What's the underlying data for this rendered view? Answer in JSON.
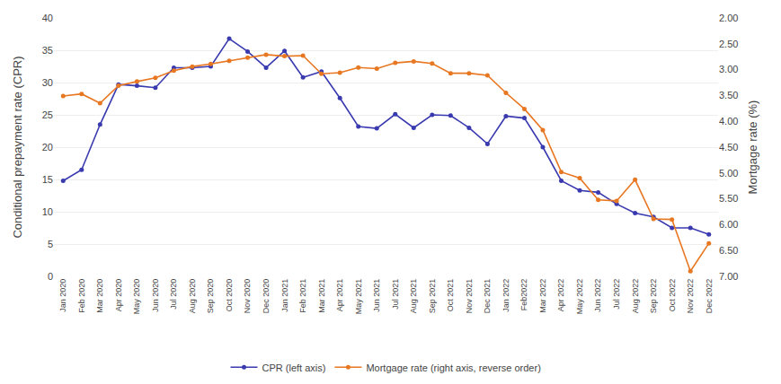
{
  "chart_data": {
    "type": "line",
    "categories": [
      "Jan 2020",
      "Feb 2020",
      "Mar 2020",
      "Apr 2020",
      "May 2020",
      "Jun 2020",
      "Jul 2020",
      "Aug 2020",
      "Sep 2020",
      "Oct 2020",
      "Nov 2020",
      "Dec 2020",
      "Jan 2021",
      "Feb 2021",
      "Mar 2021",
      "Apr 2021",
      "May 2021",
      "Jun 2021",
      "Jul 2021",
      "Aug 2021",
      "Sep 2021",
      "Oct 2021",
      "Nov 2021",
      "Dec 2021",
      "Jan 2022",
      "Feb2022",
      "Mar 2022",
      "Apr 2022",
      "May 2022",
      "Jun 2022",
      "Jul 2022",
      "Aug 2022",
      "Sep 2022",
      "Oct 2022",
      "Nov 2022",
      "Dec 2022"
    ],
    "series": [
      {
        "name": "CPR (left axis)",
        "color": "#3a3ab0",
        "marker": "circle",
        "values": [
          14.8,
          16.5,
          23.5,
          29.7,
          29.5,
          29.2,
          32.3,
          32.3,
          32.5,
          36.8,
          34.8,
          32.3,
          34.9,
          30.8,
          31.7,
          27.6,
          23.2,
          22.9,
          25.1,
          23.0,
          25.0,
          24.9,
          23.0,
          20.5,
          24.8,
          24.5,
          20.0,
          14.8,
          13.3,
          13.0,
          11.2,
          9.8,
          9.2,
          7.5,
          7.5,
          6.5
        ]
      },
      {
        "name": "Mortgage rate (right axis, reverse order)",
        "color": "#e87722",
        "marker": "circle",
        "axis": "y2",
        "values": [
          3.51,
          3.47,
          3.65,
          3.31,
          3.23,
          3.16,
          3.02,
          2.94,
          2.89,
          2.83,
          2.77,
          2.71,
          2.74,
          2.73,
          3.08,
          3.06,
          2.96,
          2.98,
          2.87,
          2.84,
          2.88,
          3.07,
          3.07,
          3.11,
          3.45,
          3.76,
          4.17,
          4.98,
          5.1,
          5.52,
          5.54,
          5.13,
          5.89,
          5.9,
          6.9,
          6.36
        ]
      }
    ],
    "ylabel": "Conditional prepayment rate (CPR)",
    "y2label": "Mortgage rate (%)",
    "ylim": [
      0,
      40
    ],
    "yticks": [
      0,
      5,
      10,
      15,
      20,
      25,
      30,
      35,
      40
    ],
    "y2lim": [
      7,
      2
    ],
    "y2ticks": [
      {
        "value": 2.0,
        "label": "2.00"
      },
      {
        "value": 2.5,
        "label": "2.50"
      },
      {
        "value": 3.0,
        "label": "3.00"
      },
      {
        "value": 3.5,
        "label": "3.50"
      },
      {
        "value": 4.0,
        "label": "4.00"
      },
      {
        "value": 4.5,
        "label": "4.50"
      },
      {
        "value": 5.0,
        "label": "5.00"
      },
      {
        "value": 5.5,
        "label": "5.50"
      },
      {
        "value": 6.0,
        "label": "6.00"
      },
      {
        "value": 6.5,
        "label": "6.50"
      },
      {
        "value": 7.0,
        "label": "7.00"
      }
    ],
    "grid": true,
    "legend": "bottom"
  }
}
